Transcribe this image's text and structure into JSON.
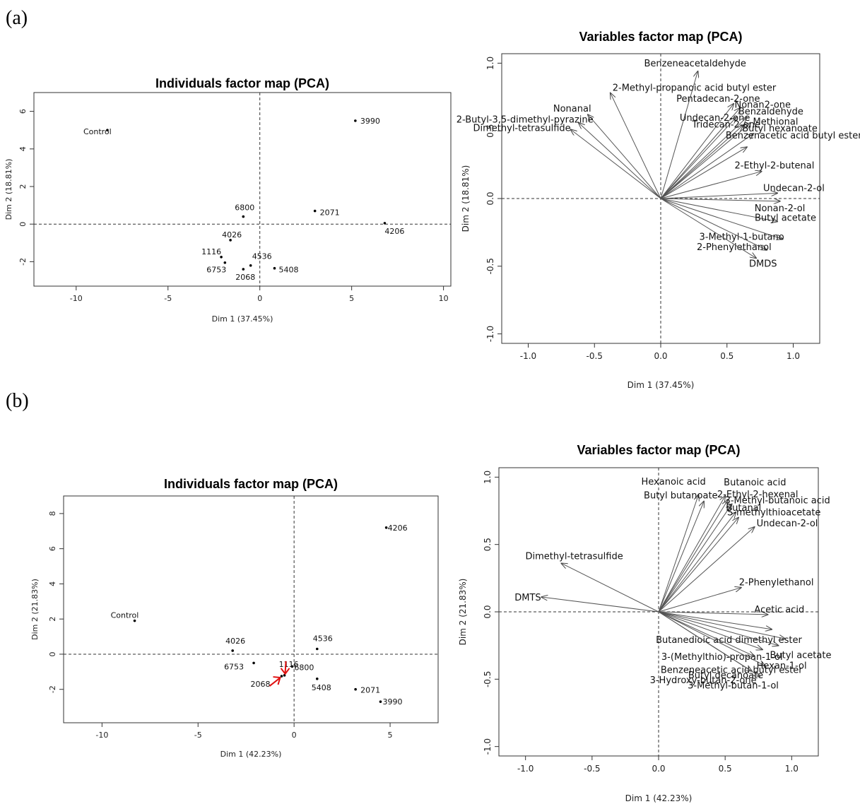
{
  "panels": [
    {
      "label": "(a)"
    },
    {
      "label": "(b)"
    }
  ],
  "chart_data": [
    {
      "type": "scatter",
      "title": "Individuals factor map (PCA)",
      "xlabel": "Dim 1 (37.45%)",
      "ylabel": "Dim 2 (18.81%)",
      "xlim": [
        -12.3,
        10.4
      ],
      "ylim": [
        -3.3,
        7.0
      ],
      "xticks": [
        -10,
        -5,
        0,
        5,
        10
      ],
      "yticks": [
        -2,
        0,
        2,
        4,
        6
      ],
      "points": [
        {
          "label": "Control",
          "x": -8.3,
          "y": 5.0
        },
        {
          "label": "3990",
          "x": 5.2,
          "y": 5.5
        },
        {
          "label": "6800",
          "x": -0.9,
          "y": 0.4
        },
        {
          "label": "2071",
          "x": 3.0,
          "y": 0.7
        },
        {
          "label": "4206",
          "x": 6.8,
          "y": 0.05
        },
        {
          "label": "4026",
          "x": -1.6,
          "y": -0.85
        },
        {
          "label": "1116",
          "x": -2.1,
          "y": -1.75
        },
        {
          "label": "6753",
          "x": -1.9,
          "y": -2.05
        },
        {
          "label": "4536",
          "x": -0.5,
          "y": -2.2
        },
        {
          "label": "2068",
          "x": -0.9,
          "y": -2.4
        },
        {
          "label": "5408",
          "x": 0.8,
          "y": -2.35
        }
      ]
    },
    {
      "type": "vector",
      "title": "Variables factor map (PCA)",
      "xlabel": "Dim 1 (37.45%)",
      "ylabel": "Dim 2 (18.81%)",
      "xlim": [
        -1.2,
        1.2
      ],
      "ylim": [
        -1.07,
        1.07
      ],
      "xticks": [
        -1.0,
        -0.5,
        0.0,
        0.5,
        1.0
      ],
      "yticks": [
        -1.0,
        -0.5,
        0.0,
        0.5,
        1.0
      ],
      "variables": [
        {
          "label": "Benzeneacetaldehyde",
          "x": 0.28,
          "y": 0.94
        },
        {
          "label": "2-Methyl-propanoic acid butyl ester",
          "x": -0.38,
          "y": 0.78
        },
        {
          "label": "Nonanal",
          "x": -0.55,
          "y": 0.62
        },
        {
          "label": "2-Butyl-3,5-dimethyl-pyrazine",
          "x": -0.62,
          "y": 0.56
        },
        {
          "label": "Dimethyl-tetrasulfide",
          "x": -0.68,
          "y": 0.51
        },
        {
          "label": "Pentadecan-2-one",
          "x": 0.55,
          "y": 0.7
        },
        {
          "label": "Nonan2-one",
          "x": 0.6,
          "y": 0.67
        },
        {
          "label": "Undecan-2-one",
          "x": 0.57,
          "y": 0.6
        },
        {
          "label": "Benzaldehyde",
          "x": 0.65,
          "y": 0.6
        },
        {
          "label": "Tridecan-2-one",
          "x": 0.62,
          "y": 0.54
        },
        {
          "label": "Methional",
          "x": 0.68,
          "y": 0.56
        },
        {
          "label": "Butyl hexanoate",
          "x": 0.7,
          "y": 0.48
        },
        {
          "label": "Benzenacetic acid butyl ester",
          "x": 0.65,
          "y": 0.38
        },
        {
          "label": "2-Ethyl-2-butenal",
          "x": 0.76,
          "y": 0.2
        },
        {
          "label": "Undecan-2-ol",
          "x": 0.88,
          "y": 0.04
        },
        {
          "label": "Nonan-2-ol",
          "x": 0.9,
          "y": -0.02
        },
        {
          "label": "Butyl acetate",
          "x": 0.88,
          "y": -0.17
        },
        {
          "label": "3-Methyl-1-butano",
          "x": 0.92,
          "y": -0.3
        },
        {
          "label": "2-Phenylethanol",
          "x": 0.8,
          "y": -0.38
        },
        {
          "label": "DMDS",
          "x": 0.72,
          "y": -0.44
        }
      ]
    },
    {
      "type": "scatter",
      "title": "Individuals factor map (PCA)",
      "xlabel": "Dim 1 (42.23%)",
      "ylabel": "Dim 2 (21.83%)",
      "xlim": [
        -12.0,
        7.5
      ],
      "ylim": [
        -3.9,
        9.0
      ],
      "xticks": [
        -10,
        -5,
        0,
        5
      ],
      "yticks": [
        -2,
        0,
        2,
        4,
        6,
        8
      ],
      "points": [
        {
          "label": "4206",
          "x": 4.8,
          "y": 7.2
        },
        {
          "label": "Control",
          "x": -8.3,
          "y": 1.9
        },
        {
          "label": "4026",
          "x": -3.2,
          "y": 0.2
        },
        {
          "label": "4536",
          "x": 1.2,
          "y": 0.3
        },
        {
          "label": "6753",
          "x": -2.1,
          "y": -0.5
        },
        {
          "label": "1116",
          "x": -0.5,
          "y": -1.2
        },
        {
          "label": "6800",
          "x": -0.1,
          "y": -0.7
        },
        {
          "label": "2068",
          "x": -0.65,
          "y": -1.25
        },
        {
          "label": "5408",
          "x": 1.2,
          "y": -1.4
        },
        {
          "label": "2071",
          "x": 3.2,
          "y": -2.0
        },
        {
          "label": "3990",
          "x": 4.5,
          "y": -2.7
        }
      ]
    },
    {
      "type": "vector",
      "title": "Variables factor map (PCA)",
      "xlabel": "Dim 1 (42.23%)",
      "ylabel": "Dim 2 (21.83%)",
      "xlim": [
        -1.2,
        1.2
      ],
      "ylim": [
        -1.07,
        1.07
      ],
      "xticks": [
        -1.0,
        -0.5,
        0.0,
        0.5,
        1.0
      ],
      "yticks": [
        -1.0,
        -0.5,
        0.0,
        0.5,
        1.0
      ],
      "variables": [
        {
          "label": "Hexanoic acid",
          "x": 0.3,
          "y": 0.87
        },
        {
          "label": "Butanoic acid",
          "x": 0.5,
          "y": 0.86
        },
        {
          "label": "Butyl butanoate",
          "x": 0.34,
          "y": 0.82
        },
        {
          "label": "2-Ethyl-2-hexenal",
          "x": 0.52,
          "y": 0.83
        },
        {
          "label": "3-Methyl-butanoic acid",
          "x": 0.55,
          "y": 0.8
        },
        {
          "label": "Butanal",
          "x": 0.58,
          "y": 0.74
        },
        {
          "label": "S-methylthioacetate",
          "x": 0.6,
          "y": 0.7
        },
        {
          "label": "Undecan-2-ol",
          "x": 0.72,
          "y": 0.63
        },
        {
          "label": "Dimethyl-tetrasulfide",
          "x": -0.73,
          "y": 0.36
        },
        {
          "label": "DMTS",
          "x": -0.88,
          "y": 0.11
        },
        {
          "label": "2-Phenylethanol",
          "x": 0.62,
          "y": 0.18
        },
        {
          "label": "Acetic acid",
          "x": 0.82,
          "y": -0.02
        },
        {
          "label": "Butanedioic acid dimethyl ester",
          "x": 0.85,
          "y": -0.13
        },
        {
          "label": "3-(Methylthio)-propan-1-ol",
          "x": 0.95,
          "y": -0.2
        },
        {
          "label": "Butyl acetate",
          "x": 0.9,
          "y": -0.25
        },
        {
          "label": "Benzeneacetic acid butyl ester",
          "x": 0.78,
          "y": -0.28
        },
        {
          "label": "3-Hydroxy-butan-2-one",
          "x": 0.72,
          "y": -0.33
        },
        {
          "label": "Hexan-1-ol",
          "x": 0.8,
          "y": -0.4
        },
        {
          "label": "Butyl decanoate",
          "x": 0.7,
          "y": -0.44
        },
        {
          "label": "3-Methyl-butan-1-ol",
          "x": 0.76,
          "y": -0.48
        }
      ]
    }
  ]
}
